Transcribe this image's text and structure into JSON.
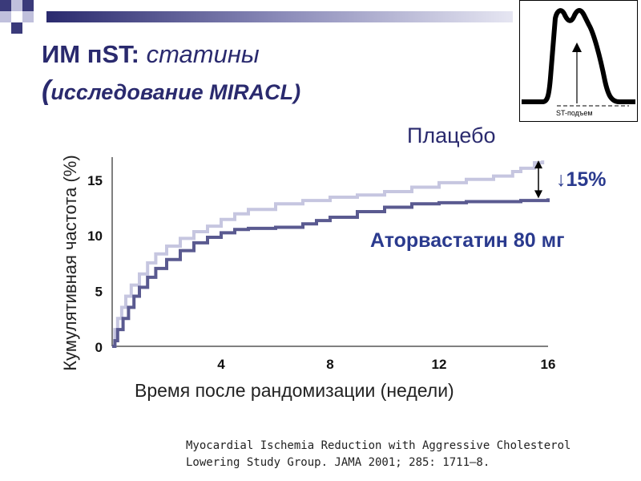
{
  "slide": {
    "title_bold": "ИМ пST:",
    "title_italic": "статины",
    "subtitle_paren": "(",
    "subtitle": "исследование MIRACL)",
    "citation_line1": "Myocardial Ischemia Reduction with Aggressive Cholesterol",
    "citation_line2": "Lowering Study Group. JAMA 2001; 285: 1711–8.",
    "ecg_inset_label": "ST-подъем",
    "reduction_label": "↓15%"
  },
  "colors": {
    "title": "#2a2a6e",
    "placebo": "#c6c6e0",
    "atorvastatin": "#5a5a90",
    "square_dark": "#3a3a7a",
    "square_light": "#c0c0dc"
  },
  "chart_data": {
    "type": "line",
    "title": "",
    "xlabel": "Время после рандомизации (недели)",
    "ylabel": "Кумулятивная частота (%)",
    "xlim": [
      0,
      16
    ],
    "ylim": [
      0,
      17
    ],
    "x_ticks": [
      4,
      8,
      12,
      16
    ],
    "y_ticks": [
      0,
      5,
      10,
      15
    ],
    "series": [
      {
        "name": "Плацебо",
        "x": [
          0,
          0.1,
          0.2,
          0.35,
          0.5,
          0.7,
          1.0,
          1.3,
          1.6,
          2.0,
          2.5,
          3.0,
          3.5,
          4.0,
          4.5,
          5.0,
          6.0,
          7.0,
          8.0,
          9.0,
          10.0,
          11.0,
          12.0,
          13.0,
          14.0,
          14.7,
          15.0,
          15.5,
          15.8
        ],
        "values": [
          0,
          1.5,
          2.5,
          3.5,
          4.5,
          5.5,
          6.5,
          7.5,
          8.3,
          9.0,
          9.7,
          10.3,
          10.8,
          11.4,
          11.9,
          12.3,
          12.8,
          13.1,
          13.4,
          13.6,
          13.9,
          14.3,
          14.7,
          15.0,
          15.3,
          15.7,
          16.0,
          16.5,
          16.7
        ]
      },
      {
        "name": "Аторвастатин 80 мг",
        "x": [
          0,
          0.1,
          0.2,
          0.4,
          0.6,
          0.8,
          1.0,
          1.3,
          1.6,
          2.0,
          2.5,
          3.0,
          3.5,
          4.0,
          4.5,
          5.0,
          5.5,
          6.0,
          7.0,
          7.5,
          8.0,
          9.0,
          10.0,
          11.0,
          12.0,
          13.0,
          14.0,
          15.0,
          16.0
        ],
        "values": [
          0,
          0.5,
          1.5,
          2.5,
          3.5,
          4.5,
          5.3,
          6.2,
          7.0,
          7.8,
          8.6,
          9.3,
          9.8,
          10.2,
          10.5,
          10.6,
          10.6,
          10.7,
          11.0,
          11.3,
          11.6,
          12.1,
          12.5,
          12.8,
          12.9,
          13.0,
          13.0,
          13.1,
          13.3
        ]
      }
    ]
  }
}
